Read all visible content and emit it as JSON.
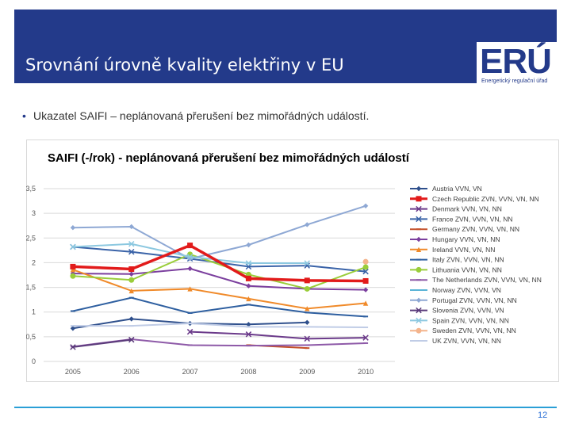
{
  "header": {
    "title": "Srovnání úrovně kvality elektřiny v EU"
  },
  "logo": {
    "text": "ERÚ",
    "subtitle": "Energetický regulační úřad"
  },
  "bullet": {
    "marker": "•",
    "text": "Ukazatel SAIFI – neplánovaná přerušení bez mimořádných událostí."
  },
  "page_number": "12",
  "chart_data": {
    "type": "line",
    "title": "SAIFI (-/rok) - neplánovaná přerušení bez mimořádných událostí",
    "xlabel": "",
    "ylabel": "",
    "categories": [
      "2005",
      "2006",
      "2007",
      "2008",
      "2009",
      "2010"
    ],
    "y_ticks": [
      "0",
      "0,5",
      "1",
      "1,5",
      "2",
      "2,5",
      "3",
      "3,5"
    ],
    "ylim": [
      0,
      3.5
    ],
    "grid": true,
    "legend_position": "right",
    "series": [
      {
        "name": "Austria VVN, VN",
        "color": "#2e4f8c",
        "marker": "diamond",
        "width": 2,
        "values": [
          0.67,
          0.86,
          0.77,
          0.75,
          0.79,
          null
        ]
      },
      {
        "name": "Czech Republic ZVN, VVN, VN, NN",
        "color": "#e21b1b",
        "marker": "square",
        "width": 3.5,
        "values": [
          1.92,
          1.87,
          2.35,
          1.68,
          1.64,
          1.63
        ]
      },
      {
        "name": "Denmark VVN, VN, NN",
        "color": "#6b3a8a",
        "marker": "x",
        "width": 2,
        "values": [
          null,
          null,
          0.6,
          0.55,
          0.46,
          0.48
        ]
      },
      {
        "name": "France ZVN, VVN, VN, NN",
        "color": "#3a63a8",
        "marker": "x",
        "width": 2,
        "values": [
          2.32,
          2.22,
          2.08,
          1.92,
          1.94,
          1.82
        ]
      },
      {
        "name": "Germany ZVN, VVN, VN, NN",
        "color": "#c4502a",
        "marker": "line",
        "width": 2,
        "values": [
          null,
          null,
          null,
          0.33,
          0.27,
          null
        ]
      },
      {
        "name": "Hungary VVN, VN, NN",
        "color": "#7b3f9e",
        "marker": "diamond",
        "width": 2,
        "values": [
          1.78,
          1.77,
          1.88,
          1.53,
          1.47,
          1.45
        ]
      },
      {
        "name": "Ireland VVN, VN, NN",
        "color": "#f08a2a",
        "marker": "triangle",
        "width": 2,
        "values": [
          1.86,
          1.43,
          1.47,
          1.27,
          1.07,
          1.18
        ]
      },
      {
        "name": "Italy ZVN, VVN, VN, NN",
        "color": "#2e5fa0",
        "marker": "line",
        "width": 2,
        "values": [
          1.02,
          1.29,
          0.98,
          1.15,
          0.99,
          0.91
        ]
      },
      {
        "name": "Lithuania VVN, VN, NN",
        "color": "#9acd3a",
        "marker": "circle",
        "width": 2,
        "values": [
          1.73,
          1.65,
          2.17,
          1.76,
          1.47,
          1.91
        ]
      },
      {
        "name": "The Netherlands ZVN, VVN, VN, NN",
        "color": "#8e5aa8",
        "marker": "line",
        "width": 2,
        "values": [
          0.3,
          0.45,
          0.33,
          0.32,
          0.33,
          0.37
        ]
      },
      {
        "name": "Norway ZVN, VVN, VN",
        "color": "#5ab4d6",
        "marker": "line",
        "width": 2,
        "values": [
          null,
          null,
          null,
          null,
          null,
          null
        ]
      },
      {
        "name": "Portugal ZVN, VVN, VN, NN",
        "color": "#8ea8d4",
        "marker": "diamond",
        "width": 2,
        "values": [
          2.71,
          2.73,
          2.08,
          2.36,
          2.77,
          3.15
        ]
      },
      {
        "name": "Slovenia ZVN, VVN, VN",
        "color": "#5a3a7a",
        "marker": "x",
        "width": 2,
        "values": [
          0.29,
          0.44,
          null,
          null,
          null,
          null
        ]
      },
      {
        "name": "Spain ZVN, VVN, VN, NN",
        "color": "#8cc8e0",
        "marker": "x",
        "width": 2,
        "values": [
          2.32,
          2.38,
          2.12,
          1.99,
          1.99,
          null
        ]
      },
      {
        "name": "Sweden ZVN, VVN, VN, NN",
        "color": "#f4b48c",
        "marker": "circle",
        "width": 2,
        "values": [
          null,
          null,
          null,
          null,
          null,
          2.02
        ]
      },
      {
        "name": "UK ZVN, VVN, VN, NN",
        "color": "#c0cce6",
        "marker": "line",
        "width": 2,
        "values": [
          0.72,
          0.72,
          0.77,
          0.7,
          0.7,
          0.69
        ]
      }
    ]
  }
}
